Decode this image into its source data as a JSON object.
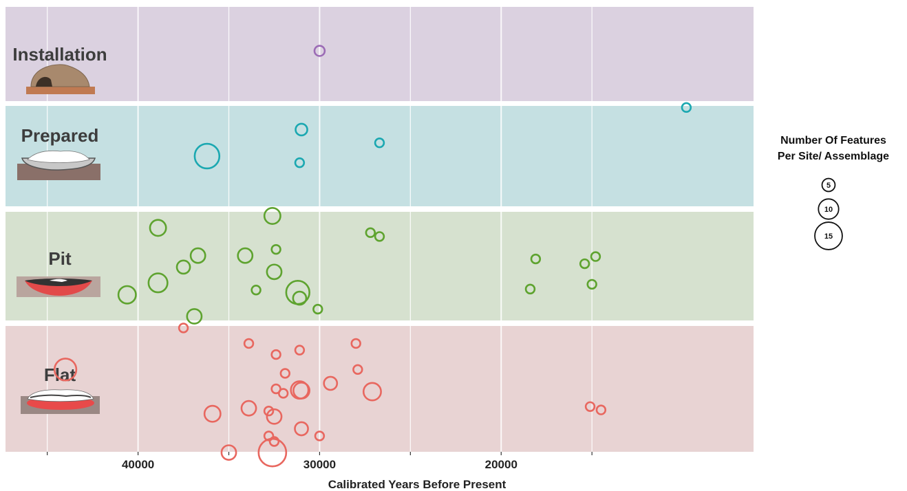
{
  "chart_data": {
    "type": "scatter",
    "xlabel": "Calibrated Years Before Present",
    "ylabel": "",
    "x_reversed": true,
    "xlim": [
      47300,
      6100
    ],
    "x_major_ticks": [
      40000,
      30000,
      20000
    ],
    "x_minor_ticks": [
      45000,
      35000,
      25000,
      15000
    ],
    "grid": true,
    "legend_placement": "right",
    "legend": {
      "title_line1": "Number Of Features",
      "title_line2": "Per Site/ Assemblage",
      "sizes": [
        "5",
        "10",
        "15"
      ]
    },
    "series": [
      {
        "name": "Installation",
        "color": "#9b6bb5",
        "band_color": "#dbd1e0",
        "points": [
          {
            "x": 30000,
            "offset": 0.0,
            "size": 5
          }
        ]
      },
      {
        "name": "Prepared",
        "color": "#1ba8b1",
        "band_color": "#c5e0e2",
        "points": [
          {
            "x": 36200,
            "offset": 0.0,
            "size": 15
          },
          {
            "x": 31000,
            "offset": 0.6,
            "size": 6
          },
          {
            "x": 31100,
            "offset": -0.15,
            "size": 4
          },
          {
            "x": 26700,
            "offset": 0.3,
            "size": 4
          },
          {
            "x": 9800,
            "offset": 1.1,
            "size": 4
          }
        ]
      },
      {
        "name": "Pit",
        "color": "#5ea32f",
        "band_color": "#d6e1cf",
        "points": [
          {
            "x": 32600,
            "offset": 1.05,
            "size": 9
          },
          {
            "x": 38900,
            "offset": 0.8,
            "size": 9
          },
          {
            "x": 27200,
            "offset": 0.7,
            "size": 4
          },
          {
            "x": 26700,
            "offset": 0.62,
            "size": 4
          },
          {
            "x": 32400,
            "offset": 0.35,
            "size": 4
          },
          {
            "x": 36700,
            "offset": 0.22,
            "size": 8
          },
          {
            "x": 34100,
            "offset": 0.22,
            "size": 8
          },
          {
            "x": 18100,
            "offset": 0.15,
            "size": 4
          },
          {
            "x": 14800,
            "offset": 0.2,
            "size": 4
          },
          {
            "x": 15400,
            "offset": 0.05,
            "size": 4
          },
          {
            "x": 37500,
            "offset": -0.02,
            "size": 7
          },
          {
            "x": 32500,
            "offset": -0.12,
            "size": 8
          },
          {
            "x": 38900,
            "offset": -0.35,
            "size": 11
          },
          {
            "x": 15000,
            "offset": -0.38,
            "size": 4
          },
          {
            "x": 18400,
            "offset": -0.48,
            "size": 4
          },
          {
            "x": 33500,
            "offset": -0.5,
            "size": 4
          },
          {
            "x": 31200,
            "offset": -0.55,
            "size": 14
          },
          {
            "x": 40600,
            "offset": -0.6,
            "size": 10
          },
          {
            "x": 31100,
            "offset": -0.67,
            "size": 7
          },
          {
            "x": 30100,
            "offset": -0.9,
            "size": 4
          },
          {
            "x": 36900,
            "offset": -1.05,
            "size": 8
          }
        ]
      },
      {
        "name": "Flat",
        "color": "#e8675f",
        "band_color": "#e8d3d3",
        "points": [
          {
            "x": 37500,
            "offset": 1.1,
            "size": 4
          },
          {
            "x": 33900,
            "offset": 0.82,
            "size": 4
          },
          {
            "x": 28000,
            "offset": 0.82,
            "size": 4
          },
          {
            "x": 31100,
            "offset": 0.7,
            "size": 4
          },
          {
            "x": 32400,
            "offset": 0.62,
            "size": 4
          },
          {
            "x": 44000,
            "offset": 0.35,
            "size": 13
          },
          {
            "x": 27900,
            "offset": 0.35,
            "size": 4
          },
          {
            "x": 31900,
            "offset": 0.28,
            "size": 4
          },
          {
            "x": 29400,
            "offset": 0.1,
            "size": 7
          },
          {
            "x": 32400,
            "offset": 0.0,
            "size": 4
          },
          {
            "x": 31100,
            "offset": -0.02,
            "size": 10
          },
          {
            "x": 31000,
            "offset": -0.03,
            "size": 9
          },
          {
            "x": 27100,
            "offset": -0.05,
            "size": 10
          },
          {
            "x": 32000,
            "offset": -0.08,
            "size": 4
          },
          {
            "x": 15100,
            "offset": -0.32,
            "size": 4
          },
          {
            "x": 14500,
            "offset": -0.38,
            "size": 4
          },
          {
            "x": 33900,
            "offset": -0.35,
            "size": 8
          },
          {
            "x": 32800,
            "offset": -0.4,
            "size": 4
          },
          {
            "x": 35900,
            "offset": -0.45,
            "size": 9
          },
          {
            "x": 32500,
            "offset": -0.5,
            "size": 8
          },
          {
            "x": 31000,
            "offset": -0.72,
            "size": 7
          },
          {
            "x": 30000,
            "offset": -0.85,
            "size": 4
          },
          {
            "x": 32800,
            "offset": -0.85,
            "size": 4
          },
          {
            "x": 32500,
            "offset": -0.95,
            "size": 4
          },
          {
            "x": 35000,
            "offset": -1.15,
            "size": 8
          },
          {
            "x": 32600,
            "offset": -1.15,
            "size": 17
          }
        ]
      }
    ]
  }
}
